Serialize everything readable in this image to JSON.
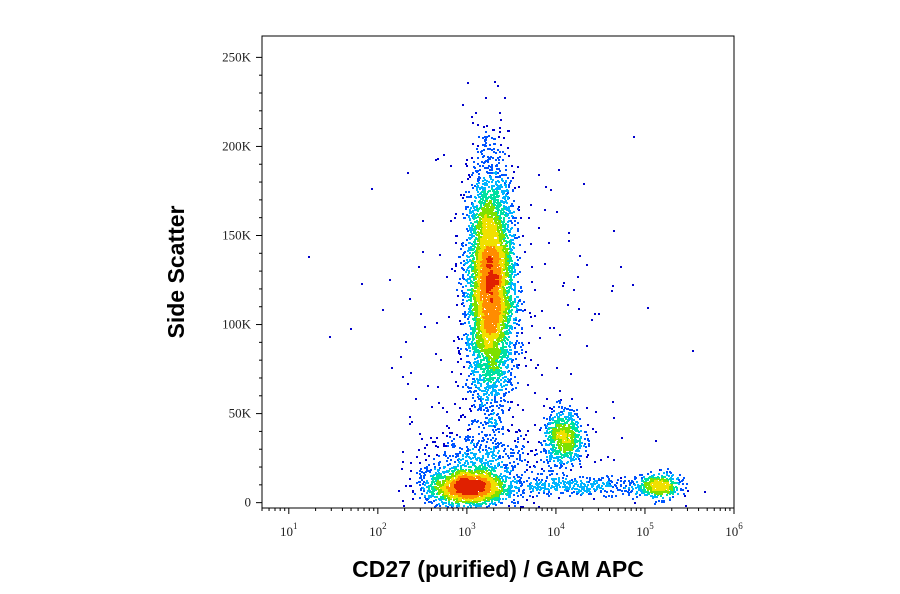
{
  "chart_data": {
    "type": "scatter",
    "subtype": "flow-cytometry density dot plot",
    "xlabel": "CD27 (purified) / GAM APC",
    "ylabel": "Side Scatter",
    "x_scale": "log",
    "xlim": [
      5,
      1000000
    ],
    "ylim": [
      -3000,
      262000
    ],
    "x_ticks": [
      {
        "value": 10,
        "base": "10",
        "exp": "1"
      },
      {
        "value": 100,
        "base": "10",
        "exp": "2"
      },
      {
        "value": 1000,
        "base": "10",
        "exp": "3"
      },
      {
        "value": 10000,
        "base": "10",
        "exp": "4"
      },
      {
        "value": 100000,
        "base": "10",
        "exp": "5"
      },
      {
        "value": 1000000,
        "base": "10",
        "exp": "6"
      }
    ],
    "y_ticks": [
      {
        "value": 0,
        "label": "0"
      },
      {
        "value": 50000,
        "label": "50K"
      },
      {
        "value": 100000,
        "label": "100K"
      },
      {
        "value": 150000,
        "label": "150K"
      },
      {
        "value": 200000,
        "label": "200K"
      },
      {
        "value": 250000,
        "label": "250K"
      }
    ],
    "grid": false,
    "legend": "none",
    "density_colors": [
      "#0000cc",
      "#0055ff",
      "#00b4ff",
      "#00e0a0",
      "#7de000",
      "#f0e000",
      "#ff8c00",
      "#e02000"
    ],
    "populations": [
      {
        "center_x": 1800,
        "center_y": 122000,
        "spread_log_x": 0.13,
        "spread_y": 32000,
        "count": 5200
      },
      {
        "center_x": 1000,
        "center_y": 9000,
        "spread_log_x": 0.22,
        "spread_y": 5000,
        "count": 1700
      },
      {
        "center_x": 12000,
        "center_y": 37000,
        "spread_log_x": 0.11,
        "spread_y": 8000,
        "count": 700
      },
      {
        "center_x": 140000,
        "center_y": 9500,
        "spread_log_x": 0.12,
        "spread_y": 3500,
        "count": 420
      },
      {
        "center_x": 20000,
        "center_y": 10000,
        "spread_log_x": 0.45,
        "spread_y": 2500,
        "count": 360
      },
      {
        "center_x": 1300,
        "center_y": 20000,
        "spread_log_x": 0.35,
        "spread_y": 12000,
        "count": 650
      },
      {
        "center_x": 3000,
        "center_y": 90000,
        "spread_log_x": 0.75,
        "spread_y": 55000,
        "count": 180
      }
    ]
  }
}
